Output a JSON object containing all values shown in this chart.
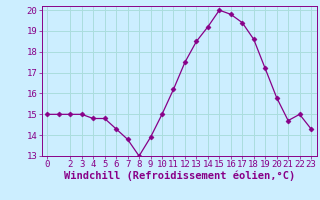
{
  "x": [
    0,
    1,
    2,
    3,
    4,
    5,
    6,
    7,
    8,
    9,
    10,
    11,
    12,
    13,
    14,
    15,
    16,
    17,
    18,
    19,
    20,
    21,
    22,
    23
  ],
  "y": [
    15.0,
    15.0,
    15.0,
    15.0,
    14.8,
    14.8,
    14.3,
    13.8,
    13.0,
    13.9,
    15.0,
    16.2,
    17.5,
    18.5,
    19.2,
    20.0,
    19.8,
    19.4,
    18.6,
    17.2,
    15.8,
    14.7,
    15.0,
    14.3
  ],
  "xlabel": "Windchill (Refroidissement éolien,°C)",
  "ylim": [
    13,
    20
  ],
  "yticks": [
    13,
    14,
    15,
    16,
    17,
    18,
    19,
    20
  ],
  "xticks": [
    0,
    2,
    3,
    4,
    5,
    6,
    7,
    8,
    9,
    10,
    11,
    12,
    13,
    14,
    15,
    16,
    17,
    18,
    19,
    20,
    21,
    22,
    23
  ],
  "line_color": "#880088",
  "marker": "D",
  "marker_size": 2.5,
  "background_color": "#cceeff",
  "grid_color": "#aadddd",
  "tick_label_fontsize": 6.5,
  "xlabel_fontsize": 7.5
}
